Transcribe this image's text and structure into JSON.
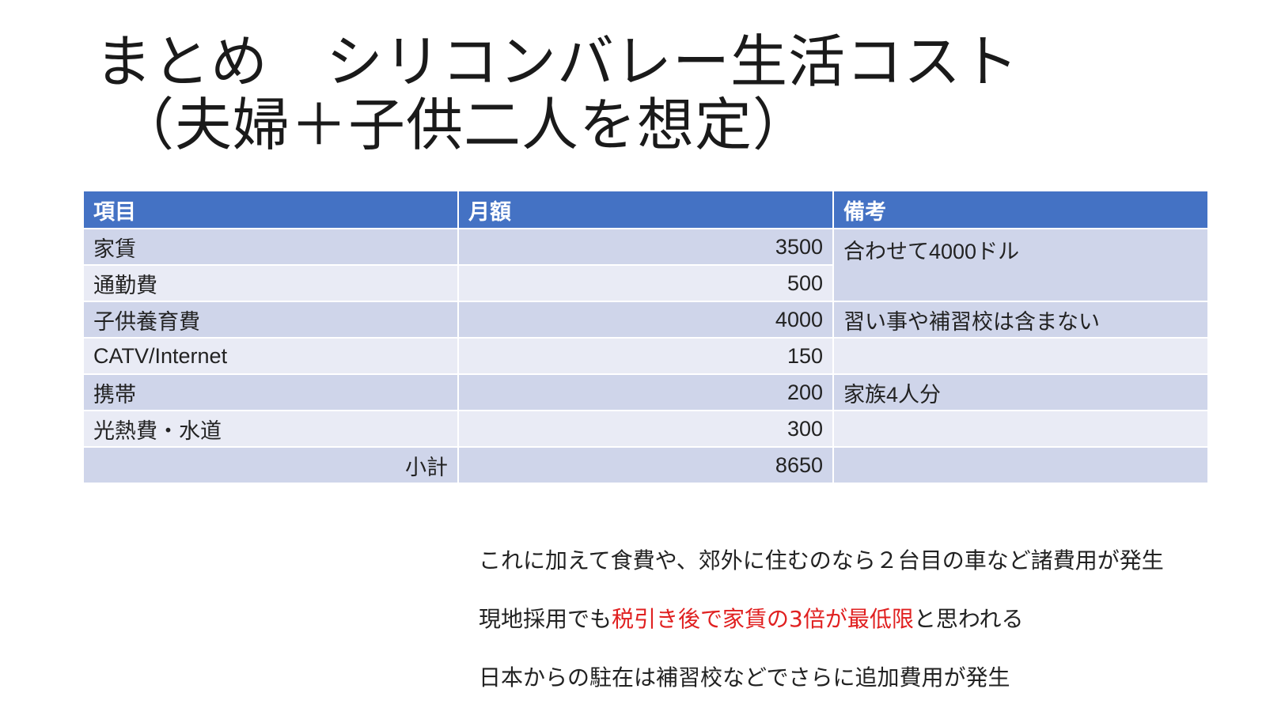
{
  "slide": {
    "title_line1": "まとめ　シリコンバレー生活コスト",
    "title_line2": "（夫婦＋子供二人を想定）"
  },
  "table": {
    "headers": [
      "項目",
      "月額",
      "備考"
    ],
    "rows": [
      {
        "item": "家賃",
        "amount": "3500"
      },
      {
        "item": "通勤費",
        "amount": "500"
      },
      {
        "item": "子供養育費",
        "amount": "4000",
        "note": "習い事や補習校は含まない"
      },
      {
        "item": "CATV/Internet",
        "amount": "150",
        "note": ""
      },
      {
        "item": "携帯",
        "amount": "200",
        "note": "家族4人分"
      },
      {
        "item": "光熱費・水道",
        "amount": "300",
        "note": ""
      }
    ],
    "merged_note": "合わせて4000ドル",
    "subtotal": {
      "label": "小計",
      "amount": "8650",
      "note": ""
    },
    "colors": {
      "header_bg": "#4472c4",
      "row_dark": "#cfd5ea",
      "row_light": "#e9ebf5"
    }
  },
  "notes": {
    "line1": "これに加えて食費や、郊外に住むのなら２台目の車など諸費用が発生",
    "line2_prefix": "現地採用でも",
    "line2_highlight": "税引き後で家賃の3倍が最低限",
    "line2_suffix": "と思われる",
    "line3": "日本からの駐在は補習校などでさらに追加費用が発生",
    "highlight_color": "#e02020"
  }
}
